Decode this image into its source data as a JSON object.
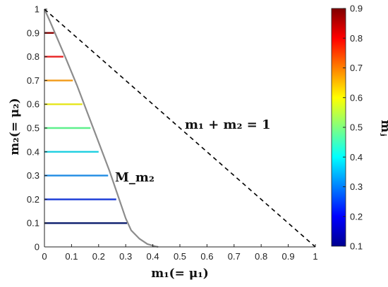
{
  "chart_data": {
    "type": "line",
    "title": "",
    "xlabel": "m₁(= μ₁)",
    "ylabel": "m₂(= μ₂)",
    "xlim": [
      0,
      1
    ],
    "ylim": [
      0,
      1
    ],
    "x_ticks": [
      "0",
      "0.1",
      "0.2",
      "0.3",
      "0.4",
      "0.5",
      "0.6",
      "0.7",
      "0.8",
      "0.9",
      "1"
    ],
    "y_ticks": [
      "0",
      "0.1",
      "0.2",
      "0.3",
      "0.4",
      "0.5",
      "0.6",
      "0.7",
      "0.8",
      "0.9",
      "1"
    ],
    "grid": false,
    "boundary_line": {
      "label": "m₁ + m₂ = 1",
      "style": "dashed",
      "color": "#000000",
      "points": [
        [
          0,
          1
        ],
        [
          1,
          0
        ]
      ]
    },
    "curve": {
      "label": "M_m₂",
      "color": "#8c8c8c",
      "points": [
        [
          0,
          1
        ],
        [
          0.02,
          0.95
        ],
        [
          0.05,
          0.87
        ],
        [
          0.08,
          0.79
        ],
        [
          0.12,
          0.68
        ],
        [
          0.16,
          0.56
        ],
        [
          0.2,
          0.44
        ],
        [
          0.24,
          0.32
        ],
        [
          0.27,
          0.22
        ],
        [
          0.3,
          0.12
        ],
        [
          0.32,
          0.07
        ],
        [
          0.35,
          0.035
        ],
        [
          0.38,
          0.012
        ],
        [
          0.41,
          0.002
        ],
        [
          0.42,
          0
        ]
      ]
    },
    "levels": [
      {
        "mj": 0.1,
        "y": 0.1,
        "x_end": 0.305,
        "color": "#0d1e6e"
      },
      {
        "mj": 0.2,
        "y": 0.2,
        "x_end": 0.265,
        "color": "#1536d6"
      },
      {
        "mj": 0.3,
        "y": 0.3,
        "x_end": 0.235,
        "color": "#1f8be3"
      },
      {
        "mj": 0.4,
        "y": 0.4,
        "x_end": 0.2,
        "color": "#1ecfe0"
      },
      {
        "mj": 0.5,
        "y": 0.5,
        "x_end": 0.17,
        "color": "#5ef08c"
      },
      {
        "mj": 0.6,
        "y": 0.6,
        "x_end": 0.14,
        "color": "#e6e61e"
      },
      {
        "mj": 0.7,
        "y": 0.7,
        "x_end": 0.105,
        "color": "#f29a17"
      },
      {
        "mj": 0.8,
        "y": 0.8,
        "x_end": 0.07,
        "color": "#e82020"
      },
      {
        "mj": 0.9,
        "y": 0.9,
        "x_end": 0.035,
        "color": "#8a0000"
      }
    ],
    "colorbar": {
      "label": "mⱼ",
      "range": [
        0.1,
        0.9
      ],
      "ticks": [
        "0.1",
        "0.2",
        "0.3",
        "0.4",
        "0.5",
        "0.6",
        "0.7",
        "0.8",
        "0.9"
      ],
      "colormap": [
        "#00008f",
        "#0000ff",
        "#0080ff",
        "#00ffff",
        "#80ff80",
        "#ffff00",
        "#ff8000",
        "#ff0000",
        "#800000"
      ]
    }
  }
}
